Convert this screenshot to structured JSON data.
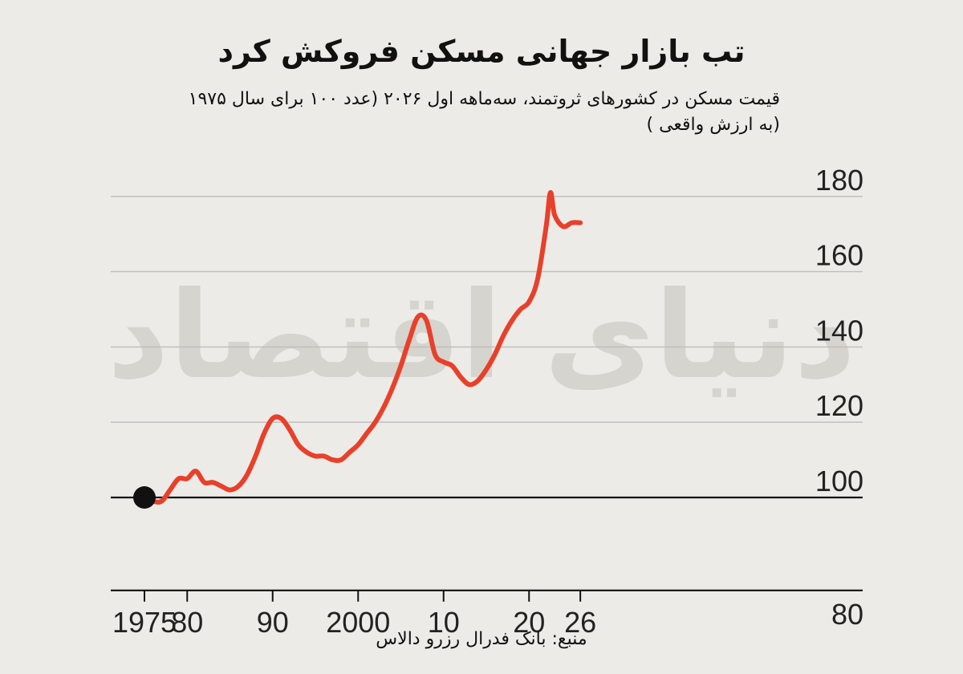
{
  "chart_data": {
    "type": "line",
    "title": "تب بازار جهانی مسکن فروکش کرد",
    "subtitle_lines": [
      "قیمت مسکن در کشورهای ثروتمند، سه‌ماهه اول ۲۰۲۶ (عدد ۱۰۰ برای سال ۱۹۷۵",
      "(به ارزش واقعی )"
    ],
    "source": "منبع: بانک فدرال رزرو دالاس",
    "watermark": "دنیای اقتصاد",
    "xlabel": "",
    "ylabel": "",
    "xlim": [
      1974,
      2028
    ],
    "ylim": [
      80,
      180
    ],
    "x_ticks": [
      1975,
      1980,
      1990,
      2000,
      2010,
      2020,
      2026
    ],
    "x_tick_labels": [
      "1975",
      "80",
      "90",
      "2000",
      "10",
      "20",
      "26"
    ],
    "y_ticks": [
      80,
      100,
      120,
      140,
      160,
      180
    ],
    "y_tick_labels": [
      "80",
      "100",
      "120",
      "140",
      "160",
      "180"
    ],
    "grid": "horizontal",
    "baseline": 100,
    "colors": {
      "line": "#e8402a",
      "marker": "#111111",
      "grid": "#bdbdbd",
      "axis": "#111111"
    },
    "series": [
      {
        "x": [
          1975,
          1976,
          1977,
          1978,
          1979,
          1980,
          1981,
          1982,
          1983,
          1984,
          1985,
          1986,
          1987,
          1988,
          1989,
          1990,
          1991,
          1992,
          1993,
          1994,
          1995,
          1996,
          1997,
          1998,
          1999,
          2000,
          2001,
          2002,
          2003,
          2004,
          2005,
          2006,
          2007,
          2008,
          2009,
          2010,
          2011,
          2012,
          2013,
          2014,
          2015,
          2016,
          2017,
          2018,
          2019,
          2020,
          2021,
          2022,
          2022.5,
          2023,
          2024,
          2025,
          2026
        ],
        "values": [
          100,
          99,
          99,
          102,
          105,
          105,
          107,
          104,
          104,
          103,
          102,
          103,
          106,
          111,
          117,
          121,
          121,
          118,
          114,
          112,
          111,
          111,
          110,
          110,
          112,
          114,
          117,
          120,
          124,
          129,
          135,
          142,
          148,
          147,
          138,
          136,
          135,
          132,
          130,
          131,
          134,
          138,
          143,
          147,
          150,
          152,
          158,
          172,
          181,
          175,
          172,
          173,
          173
        ]
      }
    ],
    "markers": [
      {
        "x": 1975,
        "y": 100
      }
    ]
  }
}
